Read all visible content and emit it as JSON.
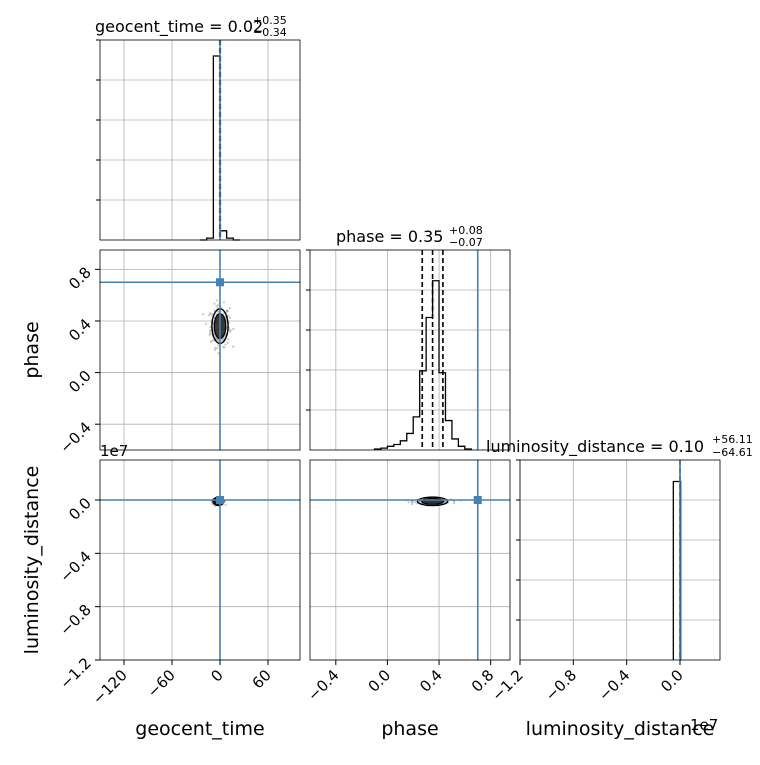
{
  "chart_data": {
    "type": "corner",
    "parameters": [
      {
        "name": "geocent_time",
        "xlabel": "geocent_time",
        "title": {
          "prefix": "geocent_time = ",
          "median": "0.02",
          "plus": "+0.35",
          "minus": "−0.34"
        },
        "axis_range": [
          -150,
          100
        ],
        "ticks": [
          -120,
          -60,
          0,
          60
        ],
        "tick_labels": [
          "−120",
          "−60",
          "0",
          "60"
        ],
        "injection": 0,
        "quantile_lines": [
          -0.32,
          0.02,
          0.37
        ],
        "histogram": {
          "bin_edges": [
            -25,
            -16.7,
            -8.3,
            0,
            8.3,
            16.7,
            25
          ],
          "values": [
            0,
            0.01,
            1.0,
            0.05,
            0.01,
            0
          ]
        }
      },
      {
        "name": "phase",
        "xlabel": "phase",
        "ylabel": "phase",
        "title": {
          "prefix": "phase = ",
          "median": "0.35",
          "plus": "+0.08",
          "minus": "−0.07"
        },
        "axis_range": [
          -0.6,
          0.95
        ],
        "ticks": [
          -0.4,
          0.0,
          0.4,
          0.8
        ],
        "tick_labels": [
          "−0.4",
          "0.0",
          "0.4",
          "0.8"
        ],
        "injection": 0.7,
        "quantile_lines": [
          0.27,
          0.35,
          0.43
        ],
        "histogram": {
          "bin_edges": [
            -0.1,
            -0.05,
            0.0,
            0.05,
            0.1,
            0.15,
            0.2,
            0.25,
            0.3,
            0.35,
            0.4,
            0.45,
            0.5,
            0.55,
            0.6,
            0.65
          ],
          "values": [
            0.005,
            0.01,
            0.02,
            0.03,
            0.05,
            0.09,
            0.18,
            0.43,
            0.72,
            0.92,
            0.42,
            0.16,
            0.06,
            0.02,
            0.005
          ]
        }
      },
      {
        "name": "luminosity_distance",
        "xlabel": "luminosity_distance",
        "ylabel": "luminosity_distance",
        "title": {
          "prefix": "luminosity_distance = ",
          "median": "0.10",
          "plus": "+56.11",
          "minus": "−64.61"
        },
        "axis_range": [
          -1.2,
          0.3
        ],
        "ticks": [
          -1.2,
          -0.8,
          -0.4,
          0.0
        ],
        "tick_labels": [
          "−1.2",
          "−0.8",
          "−0.4",
          "0.0"
        ],
        "offset_text": "1e7",
        "injection": 0,
        "quantile_lines": [
          0.0
        ],
        "histogram": {
          "bin_edges": [
            -0.05,
            0.0,
            0.005
          ],
          "values": [
            0.97,
            0.97
          ]
        }
      }
    ],
    "scatter_2d": [
      {
        "x": "geocent_time",
        "y": "phase",
        "center": [
          0,
          0.36
        ],
        "spread": [
          6,
          0.08
        ],
        "n_points": 260
      },
      {
        "x": "geocent_time",
        "y": "luminosity_distance",
        "center": [
          -2,
          -0.01
        ],
        "spread": [
          4,
          0.01
        ],
        "n_points": 120
      },
      {
        "x": "phase",
        "y": "luminosity_distance",
        "center": [
          0.35,
          -0.01
        ],
        "spread": [
          0.07,
          0.008
        ],
        "n_points": 200
      }
    ],
    "injection_color": "#4682b4",
    "grid": true
  }
}
